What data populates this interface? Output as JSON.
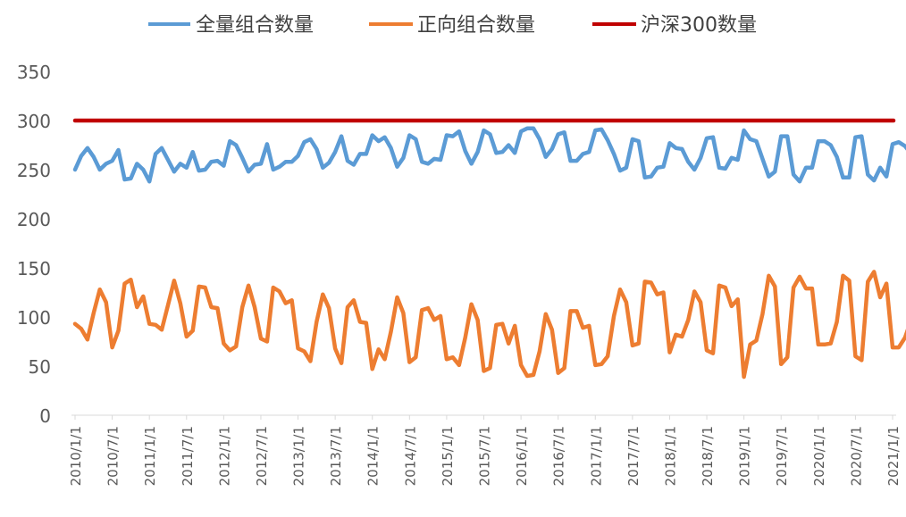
{
  "chart_data": {
    "type": "line",
    "title": "",
    "xlabel": "",
    "ylabel": "",
    "ylim": [
      0,
      350
    ],
    "yticks": [
      0,
      50,
      100,
      150,
      200,
      250,
      300,
      350
    ],
    "grid": false,
    "legend_position": "top",
    "x_tick_labels": [
      "2010/1/1",
      "2010/7/1",
      "2011/1/1",
      "2011/7/1",
      "2012/1/1",
      "2012/7/1",
      "2013/1/1",
      "2013/7/1",
      "2014/1/1",
      "2014/7/1",
      "2015/1/1",
      "2015/7/1",
      "2016/1/1",
      "2016/7/1",
      "2017/1/1",
      "2017/7/1",
      "2018/1/1",
      "2018/7/1",
      "2019/1/1",
      "2019/7/1",
      "2020/1/1",
      "2020/7/1",
      "2021/1/1"
    ],
    "x_start": "2010-01",
    "x_end": "2021-11",
    "series": [
      {
        "name": "全量组合数量",
        "color": "#5B9BD5",
        "values": [
          250,
          264,
          272,
          263,
          250,
          256,
          259,
          270,
          240,
          241,
          256,
          250,
          238,
          266,
          272,
          260,
          248,
          256,
          252,
          268,
          249,
          250,
          258,
          259,
          254,
          279,
          275,
          262,
          248,
          255,
          256,
          276,
          250,
          253,
          258,
          258,
          264,
          278,
          281,
          271,
          252,
          257,
          268,
          284,
          259,
          255,
          266,
          266,
          285,
          279,
          283,
          272,
          253,
          262,
          285,
          281,
          258,
          256,
          261,
          260,
          285,
          284,
          289,
          269,
          256,
          268,
          290,
          286,
          267,
          268,
          275,
          267,
          289,
          292,
          292,
          281,
          263,
          271,
          286,
          288,
          259,
          259,
          266,
          268,
          290,
          291,
          280,
          266,
          249,
          252,
          281,
          279,
          242,
          243,
          252,
          253,
          277,
          272,
          271,
          258,
          250,
          262,
          282,
          283,
          252,
          251,
          262,
          260,
          290,
          281,
          279,
          261,
          243,
          248,
          284,
          284,
          245,
          238,
          252,
          252,
          279,
          279,
          275,
          263,
          242,
          242,
          283,
          284,
          245,
          239,
          252,
          243,
          276,
          278,
          274,
          266,
          241
        ]
      },
      {
        "name": "正向组合数量",
        "color": "#ED7D31",
        "values": [
          93,
          88,
          77,
          104,
          128,
          115,
          69,
          86,
          134,
          138,
          110,
          121,
          93,
          92,
          87,
          112,
          137,
          114,
          80,
          86,
          131,
          130,
          110,
          109,
          73,
          66,
          70,
          110,
          132,
          110,
          78,
          75,
          130,
          126,
          114,
          117,
          68,
          65,
          55,
          95,
          123,
          109,
          68,
          53,
          110,
          117,
          95,
          94,
          47,
          67,
          57,
          85,
          120,
          104,
          54,
          59,
          107,
          109,
          97,
          101,
          57,
          59,
          51,
          79,
          113,
          97,
          45,
          48,
          92,
          93,
          73,
          91,
          51,
          40,
          41,
          65,
          103,
          87,
          43,
          48,
          106,
          106,
          89,
          91,
          51,
          52,
          60,
          101,
          128,
          115,
          71,
          73,
          136,
          135,
          123,
          125,
          64,
          82,
          80,
          97,
          126,
          115,
          66,
          63,
          132,
          130,
          111,
          118,
          39,
          72,
          76,
          103,
          142,
          131,
          52,
          59,
          130,
          141,
          129,
          129,
          72,
          72,
          73,
          95,
          142,
          137,
          60,
          56,
          136,
          146,
          120,
          134,
          69,
          69,
          79,
          97,
          140
        ]
      },
      {
        "name": "沪深300数量",
        "color": "#C00000",
        "values": [
          300,
          300
        ]
      }
    ]
  }
}
